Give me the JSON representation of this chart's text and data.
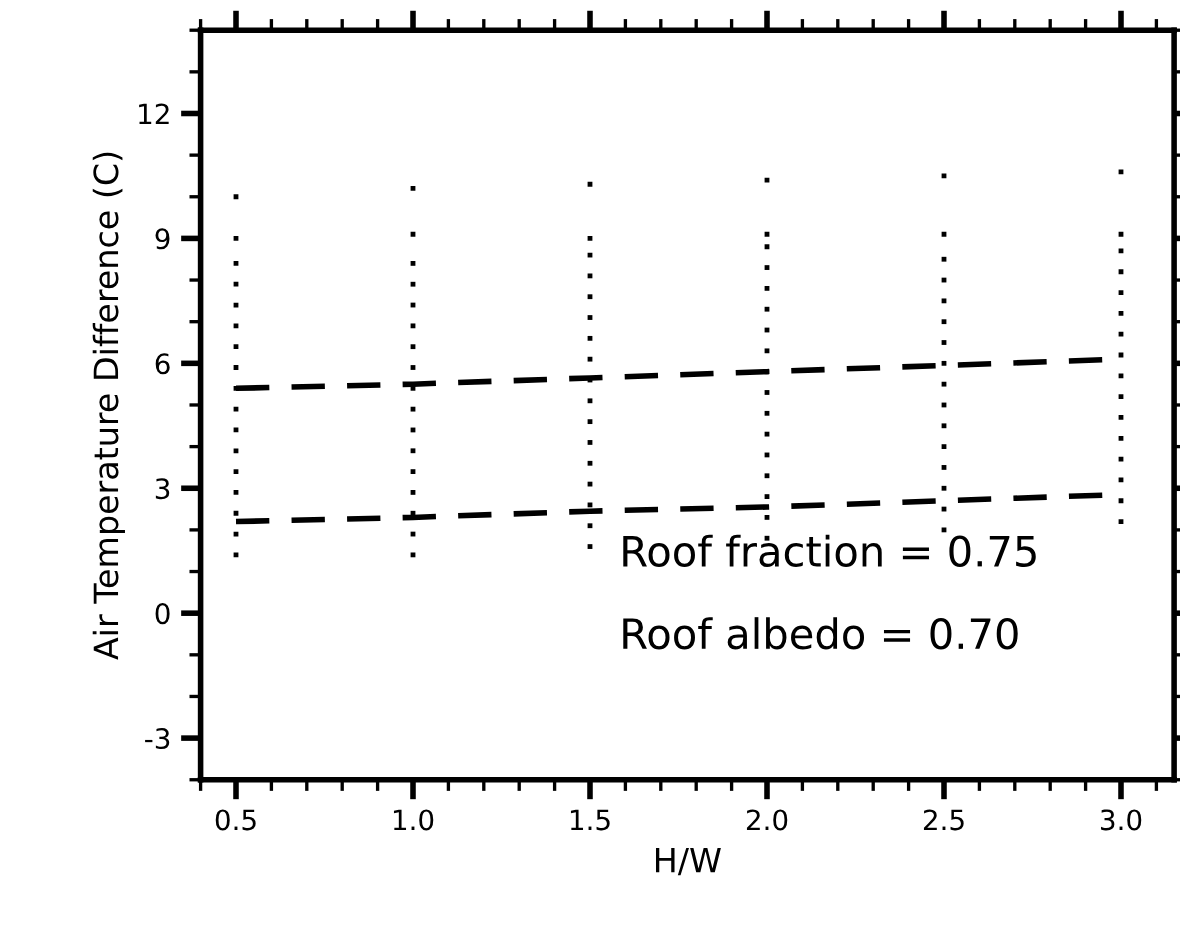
{
  "chart_data": {
    "type": "scatter",
    "xlabel": "H/W",
    "ylabel": "Air Temperature Difference (C)",
    "xlim": [
      0.4,
      3.15
    ],
    "xticks": [
      {
        "value": 0.5,
        "label": "0.5"
      },
      {
        "value": 1.0,
        "label": "1.0"
      },
      {
        "value": 1.5,
        "label": "1.5"
      },
      {
        "value": 2.0,
        "label": "2.0"
      },
      {
        "value": 2.5,
        "label": "2.5"
      },
      {
        "value": 3.0,
        "label": "3.0"
      }
    ],
    "ylim": [
      -4,
      14
    ],
    "yticks": [
      -3,
      0,
      3,
      6,
      9,
      12
    ],
    "grid": false,
    "legend": false,
    "marker": "square",
    "annotations": [
      "Roof fraction = 0.75",
      "Roof albedo = 0.70"
    ],
    "series": [
      {
        "color": "#000000",
        "x": [
          0.5,
          0.5,
          0.5,
          0.5,
          0.5,
          0.5,
          0.5,
          0.5,
          0.5,
          0.5,
          0.5,
          0.5,
          0.5,
          0.5,
          0.5,
          0.5,
          0.5,
          1.0,
          1.0,
          1.0,
          1.0,
          1.0,
          1.0,
          1.0,
          1.0,
          1.0,
          1.0,
          1.0,
          1.0,
          1.0,
          1.0,
          1.0,
          1.0,
          1.0,
          1.5,
          1.5,
          1.5,
          1.5,
          1.5,
          1.5,
          1.5,
          1.5,
          1.5,
          1.5,
          1.5,
          1.5,
          1.5,
          1.5,
          1.5,
          1.5,
          1.5,
          2.0,
          2.0,
          2.0,
          2.0,
          2.0,
          2.0,
          2.0,
          2.0,
          2.0,
          2.0,
          2.0,
          2.0,
          2.0,
          2.0,
          2.0,
          2.0,
          2.0,
          2.5,
          2.5,
          2.5,
          2.5,
          2.5,
          2.5,
          2.5,
          2.5,
          2.5,
          2.5,
          2.5,
          2.5,
          2.5,
          2.5,
          2.5,
          2.5,
          3.0,
          3.0,
          3.0,
          3.0,
          3.0,
          3.0,
          3.0,
          3.0,
          3.0,
          3.0,
          3.0,
          3.0,
          3.0,
          3.0,
          3.0,
          3.0
        ],
        "values": [
          1.4,
          1.9,
          2.4,
          2.9,
          3.4,
          3.9,
          4.4,
          4.9,
          5.4,
          5.9,
          6.4,
          6.9,
          7.4,
          7.9,
          8.4,
          9.0,
          10.0,
          1.4,
          1.9,
          2.4,
          2.9,
          3.4,
          3.9,
          4.4,
          4.9,
          5.4,
          5.9,
          6.4,
          6.9,
          7.4,
          7.9,
          8.4,
          9.1,
          10.2,
          1.6,
          2.1,
          2.6,
          3.1,
          3.6,
          4.1,
          4.6,
          5.1,
          5.6,
          6.1,
          6.6,
          7.1,
          7.6,
          8.1,
          8.6,
          9.0,
          10.3,
          1.8,
          2.3,
          2.8,
          3.3,
          3.8,
          4.3,
          4.8,
          5.3,
          5.8,
          6.3,
          6.8,
          7.3,
          7.8,
          8.3,
          8.8,
          9.1,
          10.4,
          2.0,
          2.5,
          3.0,
          3.5,
          4.0,
          4.5,
          5.0,
          5.5,
          6.0,
          6.5,
          7.0,
          7.5,
          8.0,
          8.5,
          9.1,
          10.5,
          2.2,
          2.7,
          3.2,
          3.7,
          4.2,
          4.7,
          5.2,
          5.7,
          6.2,
          6.7,
          7.2,
          7.7,
          8.2,
          8.7,
          9.1,
          10.6
        ]
      },
      {
        "type": "line",
        "color": "#000000",
        "line_style": "dashed",
        "marker": "none",
        "x": [
          0.5,
          1.0,
          1.5,
          2.0,
          2.5,
          3.0
        ],
        "values": [
          5.4,
          5.5,
          5.65,
          5.8,
          5.95,
          6.1
        ]
      },
      {
        "type": "line",
        "color": "#000000",
        "line_style": "dashed",
        "marker": "none",
        "x": [
          0.5,
          1.0,
          1.5,
          2.0,
          2.5,
          3.0
        ],
        "values": [
          2.2,
          2.3,
          2.45,
          2.55,
          2.7,
          2.85
        ]
      }
    ]
  }
}
